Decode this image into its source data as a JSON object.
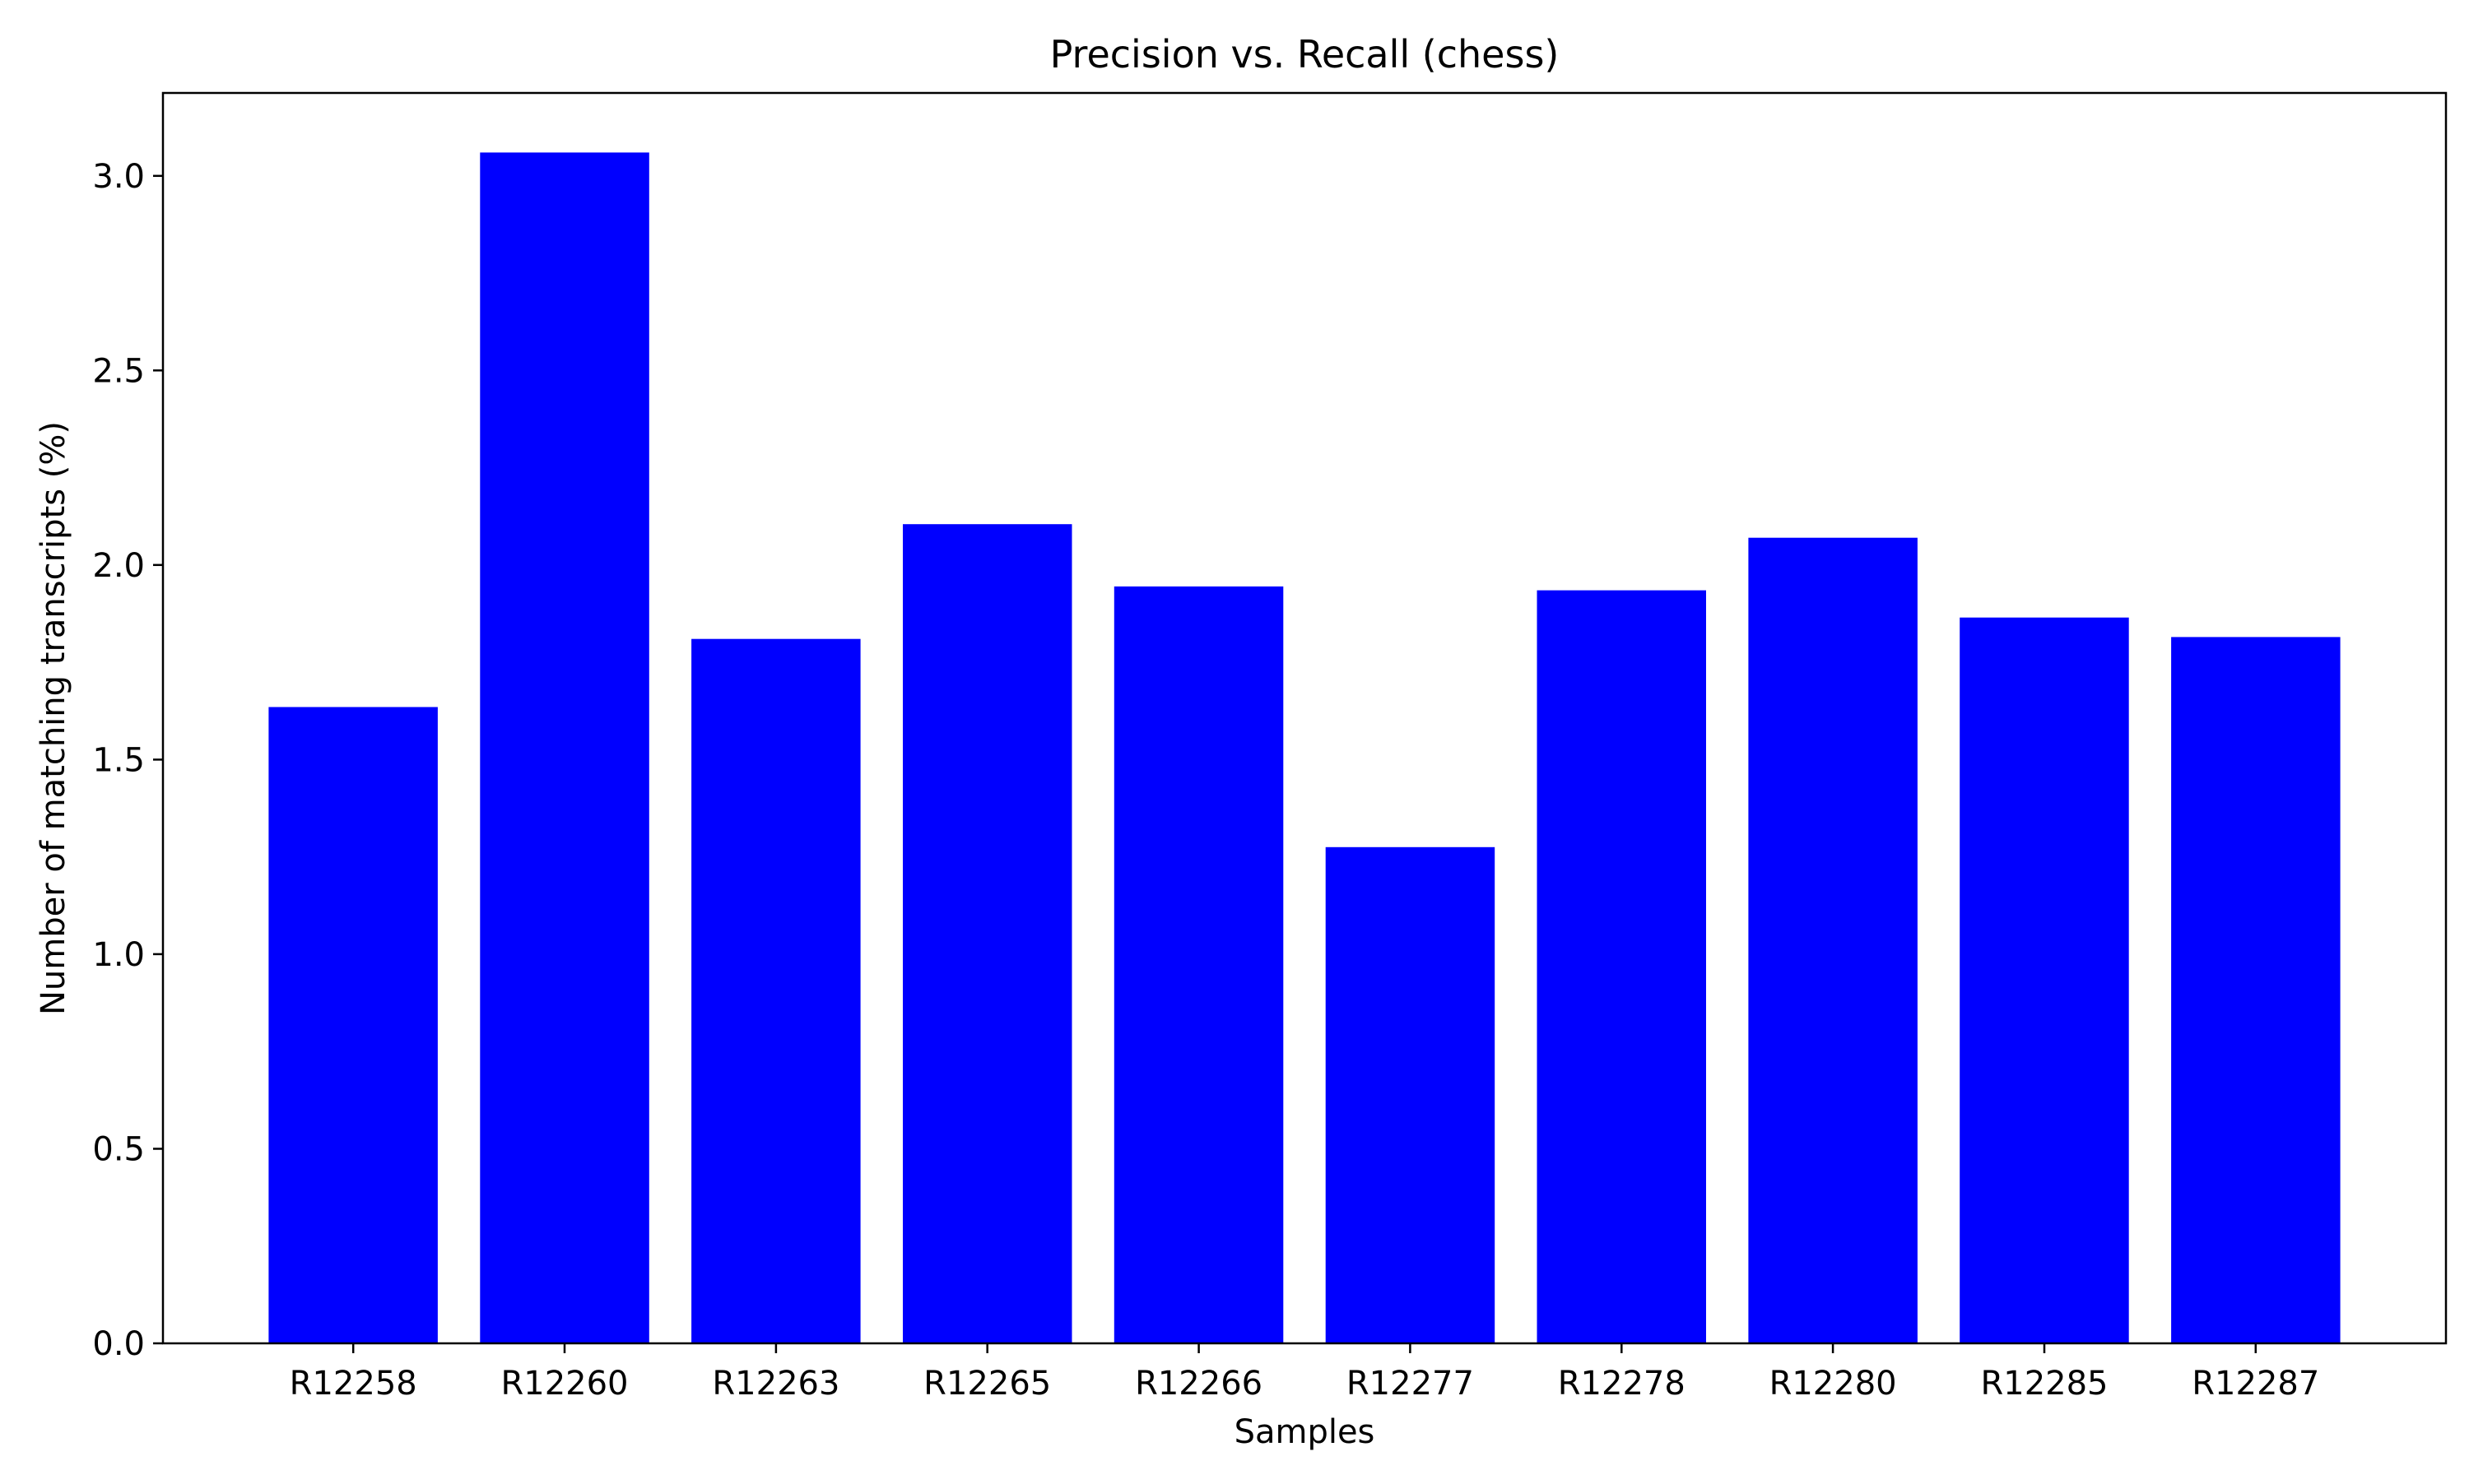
{
  "chart_data": {
    "type": "bar",
    "title": "Precision vs. Recall (chess)",
    "xlabel": "Samples",
    "ylabel": "Number of matching transcripts (%)",
    "categories": [
      "R12258",
      "R12260",
      "R12263",
      "R12265",
      "R12266",
      "R12277",
      "R12278",
      "R12280",
      "R12285",
      "R12287"
    ],
    "values": [
      1.635,
      3.06,
      1.81,
      2.105,
      1.945,
      1.275,
      1.935,
      2.07,
      1.865,
      1.815
    ],
    "ylim": [
      0,
      3.213
    ],
    "yticks": [
      0.0,
      0.5,
      1.0,
      1.5,
      2.0,
      2.5,
      3.0
    ],
    "ytick_labels": [
      "0.0",
      "0.5",
      "1.0",
      "1.5",
      "2.0",
      "2.5",
      "3.0"
    ],
    "bar_color": "#0000ff",
    "grid": false,
    "legend": "none"
  }
}
